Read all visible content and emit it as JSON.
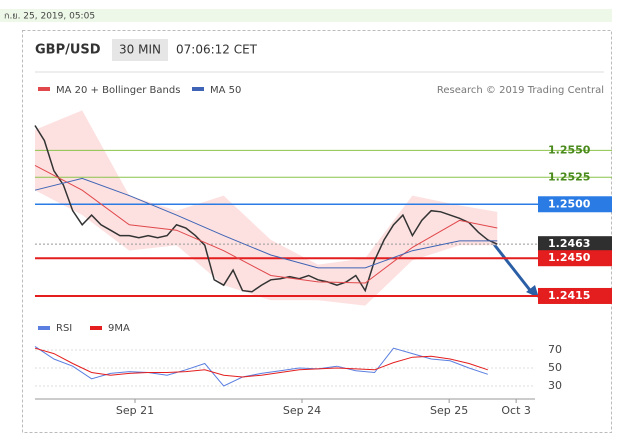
{
  "header": {
    "timestamp": "ก.ย. 25, 2019, 05:05",
    "symbol": "GBP/USD",
    "interval": "30 MIN",
    "time": "07:06:12 CET",
    "credit": "Research © 2019 Trading Central"
  },
  "chart_data": [
    {
      "type": "price",
      "legend": [
        "MA 20 + Bollinger Bands",
        "MA 50"
      ],
      "xlim": [
        0,
        53
      ],
      "ylim": [
        1.2402,
        1.2592
      ],
      "xticks": [
        {
          "value": 10.6,
          "label": "Sep 21"
        },
        {
          "value": 28.3,
          "label": "Sep 24"
        },
        {
          "value": 43.9,
          "label": "Sep 25"
        },
        {
          "value": 51,
          "label": "Oct 3"
        }
      ],
      "levels": [
        {
          "value": 1.255,
          "label": "1.2550",
          "color": "#8bc34a",
          "kind": "resistance"
        },
        {
          "value": 1.2525,
          "label": "1.2525",
          "color": "#8bc34a",
          "kind": "resistance"
        },
        {
          "value": 1.25,
          "label": "1.2500",
          "color": "#2a7be4",
          "kind": "pivot"
        },
        {
          "value": 1.2463,
          "label": "1.2463",
          "color": "#2f2f2f",
          "kind": "last"
        },
        {
          "value": 1.245,
          "label": "1.2450",
          "color": "#e41e1e",
          "kind": "support"
        },
        {
          "value": 1.2415,
          "label": "1.2415",
          "color": "#e41e1e",
          "kind": "support"
        }
      ],
      "price": {
        "color": "#333333",
        "values": [
          1.2573,
          1.2559,
          1.2531,
          1.2518,
          1.2494,
          1.2481,
          1.249,
          1.2481,
          1.2476,
          1.2471,
          1.2471,
          1.2469,
          1.2471,
          1.2469,
          1.2471,
          1.2481,
          1.2478,
          1.2471,
          1.2462,
          1.243,
          1.2425,
          1.2439,
          1.242,
          1.2419,
          1.2425,
          1.243,
          1.2431,
          1.2433,
          1.2431,
          1.2434,
          1.243,
          1.2428,
          1.2425,
          1.2428,
          1.2434,
          1.242,
          1.2448,
          1.2467,
          1.2481,
          1.249,
          1.2471,
          1.2485,
          1.2494,
          1.2493,
          1.249,
          1.2487,
          1.2483,
          1.2474,
          1.2467,
          1.2463
        ]
      },
      "x_sampled": [
        0,
        5,
        10,
        15,
        20,
        25,
        30,
        35,
        40,
        45,
        49
      ],
      "ma20": {
        "color": "#e0484b",
        "values": [
          1.2536,
          1.2513,
          1.2481,
          1.2476,
          1.2457,
          1.2434,
          1.2428,
          1.2427,
          1.246,
          1.2485,
          1.2478
        ]
      },
      "ma50": {
        "color": "#3f64b5",
        "values": [
          1.2513,
          1.2524,
          1.2508,
          1.249,
          1.2471,
          1.2453,
          1.2441,
          1.2441,
          1.2457,
          1.2466,
          1.2466
        ]
      },
      "bb_upper": [
        1.2569,
        1.2587,
        1.2508,
        1.2494,
        1.2508,
        1.2467,
        1.2444,
        1.245,
        1.2508,
        1.2499,
        1.2493
      ],
      "bb_lower": [
        1.2513,
        1.249,
        1.2457,
        1.2462,
        1.2425,
        1.2411,
        1.2411,
        1.2406,
        1.2448,
        1.2462,
        1.2462
      ],
      "band_color": "#fcd9d9"
    },
    {
      "type": "rsi",
      "legend": [
        "RSI",
        "9MA"
      ],
      "xlim": [
        0,
        53
      ],
      "ylim": [
        16.7,
        78.9
      ],
      "yticks": [
        70,
        50,
        30
      ],
      "x": [
        0,
        2,
        4,
        6,
        8,
        10,
        12,
        14,
        16,
        18,
        20,
        22,
        24,
        26,
        28,
        30,
        32,
        34,
        36,
        38,
        40,
        42,
        44,
        46,
        48
      ],
      "series": [
        {
          "name": "RSI",
          "color": "#5b7fe0",
          "values": [
            74,
            60,
            52,
            38,
            44,
            46,
            45,
            42,
            48,
            55,
            30,
            40,
            44,
            47,
            50,
            49,
            52,
            47,
            45,
            72,
            66,
            60,
            58,
            50,
            43
          ]
        },
        {
          "name": "9MA",
          "color": "#e41e1e",
          "values": [
            72,
            66,
            55,
            45,
            42,
            44,
            45,
            45,
            46,
            48,
            42,
            40,
            42,
            45,
            48,
            49,
            50,
            49,
            48,
            56,
            62,
            63,
            60,
            55,
            48
          ]
        }
      ]
    }
  ]
}
